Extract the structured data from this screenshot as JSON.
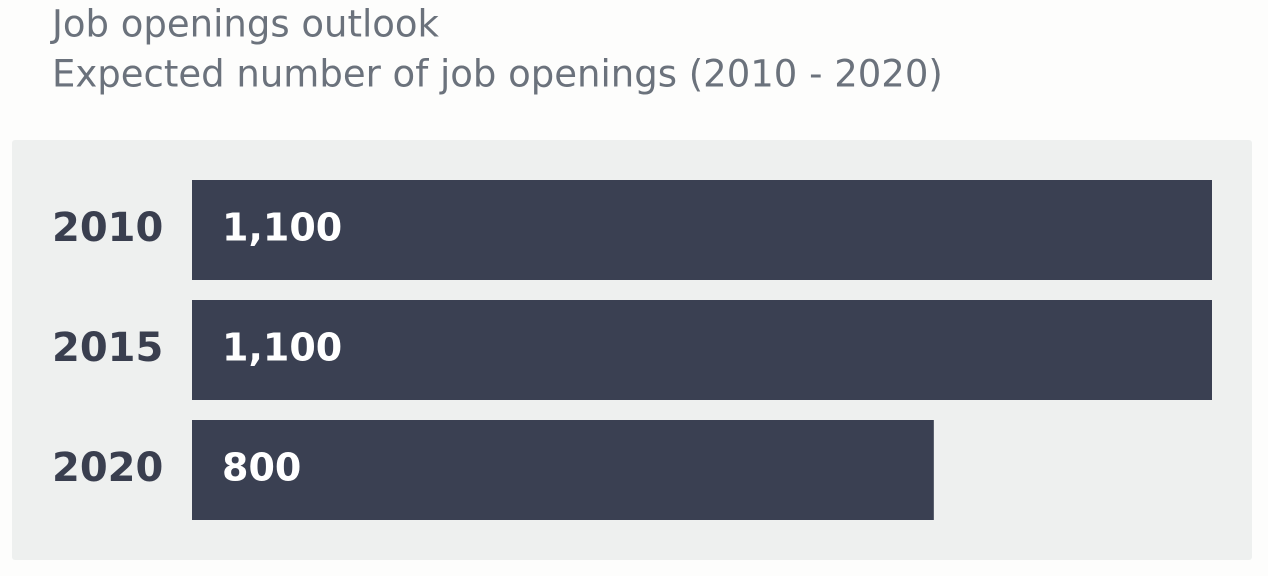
{
  "chart_data": {
    "type": "bar",
    "orientation": "horizontal",
    "title": "Job openings outlook",
    "subtitle": "Expected number of job openings (2010 - 2020)",
    "categories": [
      "2010",
      "2015",
      "2020"
    ],
    "values": [
      1100,
      1100,
      800
    ],
    "value_labels": [
      "1,100",
      "1,100",
      "800"
    ],
    "color": "#3a4052"
  }
}
